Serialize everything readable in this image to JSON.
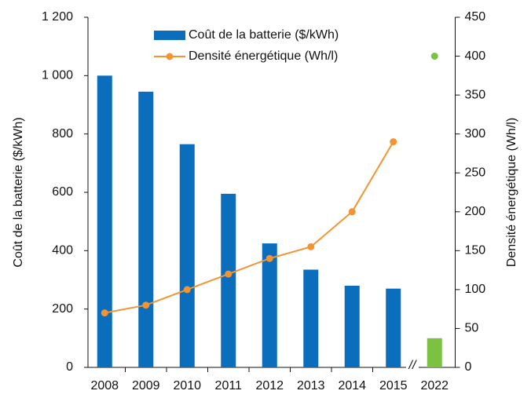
{
  "chart_data": {
    "type": "bar_line",
    "categories": [
      "2008",
      "2009",
      "2010",
      "2011",
      "2012",
      "2013",
      "2014",
      "2015",
      "2022"
    ],
    "series": [
      {
        "name": "Coût de la batterie ($/kWh)",
        "type": "bar",
        "color": "#0a6ebd",
        "colors": [
          "#0a6ebd",
          "#0a6ebd",
          "#0a6ebd",
          "#0a6ebd",
          "#0a6ebd",
          "#0a6ebd",
          "#0a6ebd",
          "#0a6ebd",
          "#7cc142"
        ],
        "values": [
          1000,
          945,
          765,
          595,
          425,
          335,
          280,
          270,
          100
        ]
      },
      {
        "name": "Densité énergétique (Wh/l)",
        "type": "line",
        "axis": "y2",
        "color": "#f39433",
        "values": [
          70,
          80,
          100,
          120,
          140,
          155,
          200,
          290,
          null
        ]
      },
      {
        "type": "scatter",
        "axis": "y2",
        "color": "#7cc142",
        "values": [
          null,
          null,
          null,
          null,
          null,
          null,
          null,
          null,
          400
        ]
      }
    ],
    "ylabel": "Coût de la batterie ($/kWh)",
    "y2label": "Densité énergétique (Wh/l)",
    "ylim": [
      0,
      1200
    ],
    "yticks": [
      0,
      200,
      400,
      600,
      800,
      {
        "value": 1000,
        "label": "1 000"
      },
      {
        "value": 1200,
        "label": "1 200"
      }
    ],
    "y2lim": [
      0,
      450
    ],
    "y2ticks": [
      0,
      50,
      100,
      150,
      200,
      250,
      300,
      350,
      400,
      450
    ],
    "x_break_label": "//",
    "legend": "top"
  }
}
